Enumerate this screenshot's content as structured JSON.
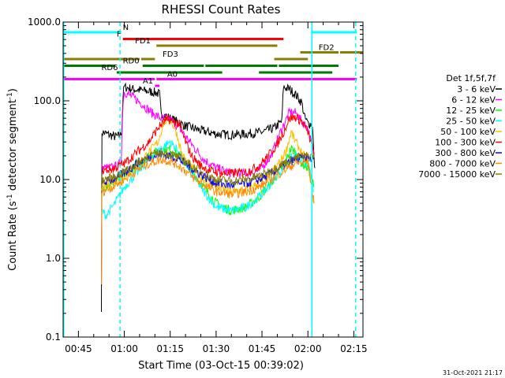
{
  "chart_data": {
    "type": "line",
    "title": "RHESSI Count Rates",
    "xlabel": "Start Time (03-Oct-15 00:39:02)",
    "ylabel_main": "Count Rate (s",
    "ylabel_sup1": "-1",
    "ylabel_mid": " detector segment",
    "ylabel_sup2": "-1",
    "ylabel_end": ")",
    "timestamp": "31-Oct-2021 21:17",
    "x_unit": "minutes since 00:00 UT",
    "xlim": [
      40,
      138
    ],
    "ylim": [
      0.1,
      1000
    ],
    "yscale": "log",
    "x_ticks": [
      {
        "value": 45,
        "label": "00:45"
      },
      {
        "value": 60,
        "label": "01:00"
      },
      {
        "value": 75,
        "label": "01:15"
      },
      {
        "value": 90,
        "label": "01:30"
      },
      {
        "value": 105,
        "label": "01:45"
      },
      {
        "value": 120,
        "label": "02:00"
      },
      {
        "value": 135,
        "label": "02:15"
      }
    ],
    "y_ticks": [
      {
        "value": 0.1,
        "label": "0.1"
      },
      {
        "value": 1,
        "label": "1.0"
      },
      {
        "value": 10,
        "label": "10.0"
      },
      {
        "value": 100,
        "label": "100.0"
      },
      {
        "value": 1000,
        "label": "1000.0"
      }
    ],
    "legend_title": "Det 1f,5f,7f",
    "legend_position": "right",
    "series": [
      {
        "name": "3 - 6 keV",
        "color": "#000000",
        "points": [
          [
            52.5,
            0.24
          ],
          [
            52.7,
            40
          ],
          [
            55,
            37
          ],
          [
            57,
            35
          ],
          [
            58.5,
            36
          ],
          [
            59.2,
            42
          ],
          [
            59.6,
            120
          ],
          [
            60,
            150
          ],
          [
            63,
            140
          ],
          [
            66,
            135
          ],
          [
            70,
            128
          ],
          [
            71.5,
            122
          ],
          [
            72,
            70
          ],
          [
            75,
            60
          ],
          [
            80,
            48
          ],
          [
            85,
            42
          ],
          [
            90,
            38
          ],
          [
            95,
            37
          ],
          [
            100,
            38
          ],
          [
            105,
            40
          ],
          [
            109,
            45
          ],
          [
            111.5,
            55
          ],
          [
            112,
            150
          ],
          [
            114,
            140
          ],
          [
            116,
            120
          ],
          [
            118,
            95
          ],
          [
            119,
            60
          ],
          [
            120,
            52
          ],
          [
            121.5,
            50
          ],
          [
            122,
            18
          ],
          [
            122.3,
            14
          ]
        ]
      },
      {
        "name": "6 - 12 keV",
        "color": "#ff00ff",
        "points": [
          [
            52.7,
            14
          ],
          [
            55,
            14
          ],
          [
            58,
            15
          ],
          [
            59,
            18
          ],
          [
            59.6,
            100
          ],
          [
            60,
            130
          ],
          [
            63,
            110
          ],
          [
            66,
            90
          ],
          [
            69,
            70
          ],
          [
            72,
            60
          ],
          [
            75,
            58
          ],
          [
            78,
            45
          ],
          [
            82,
            28
          ],
          [
            86,
            18
          ],
          [
            90,
            14
          ],
          [
            95,
            12
          ],
          [
            100,
            12
          ],
          [
            104,
            13
          ],
          [
            108,
            20
          ],
          [
            111,
            40
          ],
          [
            114,
            72
          ],
          [
            116,
            70
          ],
          [
            118,
            55
          ],
          [
            120,
            45
          ],
          [
            122,
            20
          ]
        ]
      },
      {
        "name": "12 - 25 keV",
        "color": "#00ff00",
        "points": [
          [
            52.7,
            8
          ],
          [
            56,
            9
          ],
          [
            60,
            11
          ],
          [
            64,
            15
          ],
          [
            68,
            20
          ],
          [
            72,
            24
          ],
          [
            75,
            24
          ],
          [
            78,
            20
          ],
          [
            82,
            13
          ],
          [
            86,
            8
          ],
          [
            90,
            5
          ],
          [
            95,
            4
          ],
          [
            100,
            4.5
          ],
          [
            104,
            6
          ],
          [
            108,
            9
          ],
          [
            111,
            13
          ],
          [
            113,
            18
          ],
          [
            114.5,
            25
          ],
          [
            116,
            22
          ],
          [
            118,
            16
          ],
          [
            120,
            14
          ],
          [
            122,
            8
          ]
        ]
      },
      {
        "name": "25 - 50 keV",
        "color": "#00ffff",
        "points": [
          [
            52.7,
            4
          ],
          [
            54,
            3.5
          ],
          [
            57,
            5
          ],
          [
            60,
            8
          ],
          [
            64,
            12
          ],
          [
            68,
            18
          ],
          [
            72,
            25
          ],
          [
            75,
            30
          ],
          [
            78,
            22
          ],
          [
            82,
            12
          ],
          [
            86,
            7
          ],
          [
            90,
            4.5
          ],
          [
            95,
            4
          ],
          [
            100,
            4.5
          ],
          [
            104,
            6
          ],
          [
            108,
            9
          ],
          [
            111,
            13
          ],
          [
            114,
            18
          ],
          [
            116,
            20
          ],
          [
            118,
            17
          ],
          [
            120,
            16
          ],
          [
            122,
            7
          ]
        ]
      },
      {
        "name": "50 - 100 keV",
        "color": "#ffbf00",
        "points": [
          [
            52.7,
            8
          ],
          [
            56,
            9
          ],
          [
            60,
            11
          ],
          [
            64,
            15
          ],
          [
            68,
            22
          ],
          [
            71,
            30
          ],
          [
            73,
            55
          ],
          [
            75,
            58
          ],
          [
            77,
            40
          ],
          [
            79,
            20
          ],
          [
            82,
            14
          ],
          [
            86,
            10
          ],
          [
            90,
            8
          ],
          [
            95,
            7
          ],
          [
            100,
            7.5
          ],
          [
            104,
            9
          ],
          [
            108,
            12
          ],
          [
            111,
            17
          ],
          [
            113,
            24
          ],
          [
            114.5,
            40
          ],
          [
            116,
            30
          ],
          [
            118,
            22
          ],
          [
            120,
            16
          ],
          [
            122,
            5
          ]
        ]
      },
      {
        "name": "100 - 300 keV",
        "color": "#ff0000",
        "points": [
          [
            52.7,
            13
          ],
          [
            56,
            13.5
          ],
          [
            60,
            16
          ],
          [
            64,
            22
          ],
          [
            68,
            30
          ],
          [
            71,
            45
          ],
          [
            73,
            54
          ],
          [
            75,
            58
          ],
          [
            78,
            50
          ],
          [
            80,
            30
          ],
          [
            82,
            20
          ],
          [
            85,
            15
          ],
          [
            88,
            13
          ],
          [
            92,
            12
          ],
          [
            96,
            12
          ],
          [
            100,
            12.5
          ],
          [
            104,
            15
          ],
          [
            107,
            20
          ],
          [
            110,
            28
          ],
          [
            112,
            40
          ],
          [
            114,
            60
          ],
          [
            116,
            62
          ],
          [
            118,
            55
          ],
          [
            120,
            40
          ],
          [
            122,
            22
          ]
        ]
      },
      {
        "name": "300 - 800 keV",
        "color": "#0000ff",
        "points": [
          [
            52.7,
            9
          ],
          [
            56,
            10
          ],
          [
            60,
            12
          ],
          [
            64,
            16
          ],
          [
            68,
            19
          ],
          [
            72,
            21
          ],
          [
            75,
            20
          ],
          [
            78,
            18
          ],
          [
            82,
            14
          ],
          [
            86,
            11
          ],
          [
            90,
            9
          ],
          [
            95,
            8.5
          ],
          [
            100,
            9
          ],
          [
            104,
            10
          ],
          [
            108,
            12
          ],
          [
            112,
            15
          ],
          [
            116,
            18
          ],
          [
            120,
            19
          ],
          [
            122,
            18
          ]
        ]
      },
      {
        "name": "800 - 7000 keV",
        "color": "#ff8c00",
        "points": [
          [
            52.5,
            0.5
          ],
          [
            52.7,
            7
          ],
          [
            56,
            8
          ],
          [
            60,
            10
          ],
          [
            64,
            13
          ],
          [
            68,
            16
          ],
          [
            72,
            18
          ],
          [
            75,
            17
          ],
          [
            78,
            15
          ],
          [
            82,
            11
          ],
          [
            86,
            8.5
          ],
          [
            90,
            7
          ],
          [
            95,
            6.5
          ],
          [
            100,
            7
          ],
          [
            104,
            8
          ],
          [
            108,
            10
          ],
          [
            112,
            13
          ],
          [
            116,
            16
          ],
          [
            120,
            17
          ],
          [
            122,
            5
          ]
        ]
      },
      {
        "name": "7000 - 15000 keV",
        "color": "#8b7d00",
        "points": [
          [
            52.7,
            10
          ],
          [
            56,
            10.5
          ],
          [
            60,
            12.5
          ],
          [
            64,
            16
          ],
          [
            68,
            20
          ],
          [
            72,
            22
          ],
          [
            75,
            21
          ],
          [
            78,
            19
          ],
          [
            82,
            15
          ],
          [
            86,
            12
          ],
          [
            90,
            10
          ],
          [
            95,
            9.5
          ],
          [
            100,
            10
          ],
          [
            104,
            11
          ],
          [
            108,
            13
          ],
          [
            112,
            16
          ],
          [
            116,
            19
          ],
          [
            120,
            20
          ],
          [
            122,
            19
          ]
        ]
      }
    ],
    "annotations": {
      "flags": [
        {
          "label": "N",
          "color": "#00ffff",
          "y_row": 0,
          "segments": [
            [
              40,
              59
            ],
            [
              121,
              136
            ]
          ],
          "label_x": 59.5
        },
        {
          "label": "F",
          "color": "#ff0000",
          "y_row": 1,
          "segments": [
            [
              59.5,
              112
            ]
          ],
          "label_x": 57.5
        },
        {
          "label": "FD1",
          "color": "#8b7d00",
          "y_row": 2,
          "segments": [
            [
              70.5,
              110
            ]
          ],
          "label_x": 63.5
        },
        {
          "label": "FD2",
          "color": "#8b7d00",
          "y_row": 3,
          "segments": [
            [
              117.5,
              130
            ],
            [
              130.5,
              138
            ]
          ],
          "label_x": 123.5
        },
        {
          "label": "FD3",
          "color": "#8b7d00",
          "y_row": 4,
          "segments": [
            [
              40,
              65
            ],
            [
              65.5,
              70
            ],
            [
              109,
              120
            ]
          ],
          "label_x": 72.5
        },
        {
          "label": "RD0",
          "color": "#007a00",
          "y_row": 5,
          "segments": [
            [
              40,
              57
            ],
            [
              66,
              86
            ],
            [
              86.5,
              110
            ],
            [
              110.5,
              130
            ]
          ],
          "label_x": 59.5
        },
        {
          "label": "RD6",
          "color": "#007a00",
          "y_row": 6,
          "segments": [
            [
              57.5,
              92
            ],
            [
              104,
              128
            ]
          ],
          "label_x": 52.5
        },
        {
          "label": "A0",
          "color": "#ff00ff",
          "y_row": 7,
          "segments": [
            [
              40,
              70
            ],
            [
              70.5,
              136
            ]
          ],
          "label_x": 74
        },
        {
          "label": "A1",
          "color": "#ff00ff",
          "y_row": 8,
          "segments": [
            [
              70,
              71.5
            ]
          ],
          "label_x": 66
        }
      ],
      "vertical_lines": [
        {
          "x": 40.2,
          "color": "#00ffff",
          "style": "solid"
        },
        {
          "x": 58.6,
          "color": "#00ffff",
          "style": "dashed"
        },
        {
          "x": 121.3,
          "color": "#00ffff",
          "style": "solid"
        },
        {
          "x": 135.6,
          "color": "#00ffff",
          "style": "dashed"
        }
      ]
    },
    "grid": false
  }
}
